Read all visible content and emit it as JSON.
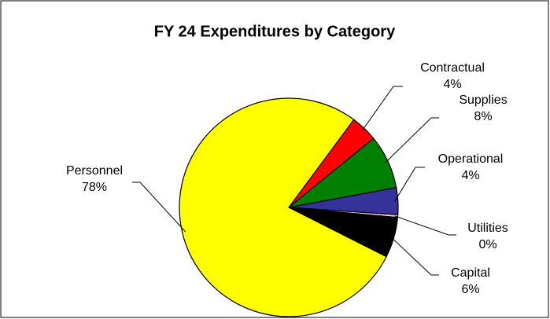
{
  "chart_data": {
    "type": "pie",
    "title": "FY 24 Expenditures by Category",
    "categories": [
      "Contractual",
      "Supplies",
      "Operational",
      "Utilities",
      "Capital",
      "Personnel"
    ],
    "values": [
      4,
      8,
      4,
      0.4,
      6,
      78
    ],
    "value_labels": [
      "4%",
      "8%",
      "4%",
      "0%",
      "6%",
      "78%"
    ],
    "colors": [
      "#ff0000",
      "#008000",
      "#333399",
      "#ffccff",
      "#000000",
      "#ffff00"
    ]
  }
}
